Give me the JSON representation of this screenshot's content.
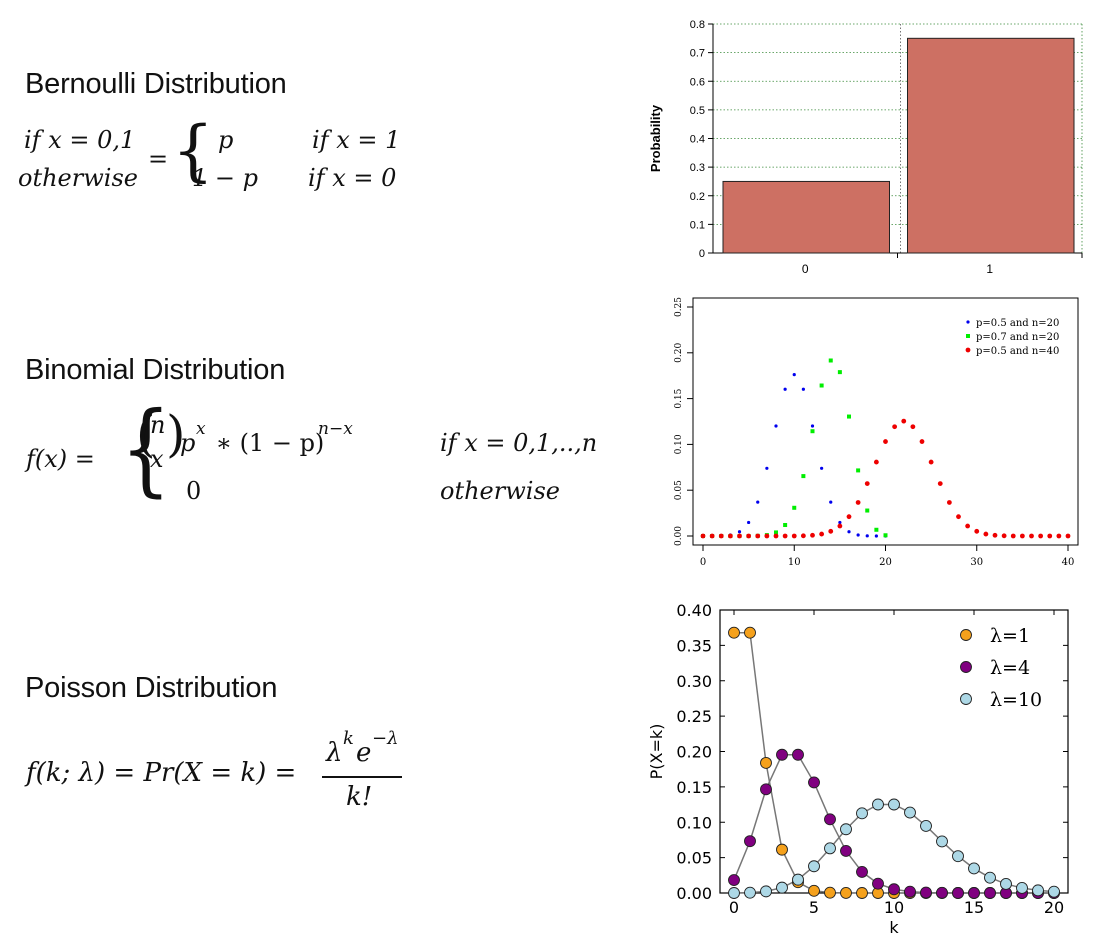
{
  "sections": {
    "bernoulli": {
      "title": "Bernoulli Distribution",
      "lhs_top": "if x = 0,1",
      "lhs_bottom": "otherwise",
      "equals": "=",
      "case1_value": "p",
      "case1_cond": "if x = 1",
      "case2_value": "1 − p",
      "case2_cond": "if x = 0"
    },
    "binomial": {
      "title": "Binomial Distribution",
      "lhs": "f(x) =",
      "binom_n": "n",
      "binom_x": "x",
      "case1_expr": "p",
      "case1_exp1": "x",
      "case1_mid": " ∗ (1 − p)",
      "case1_exp2": "n−x",
      "case1_cond": "if x = 0,1,..,n",
      "case2_value": "0",
      "case2_cond": "otherwise"
    },
    "poisson": {
      "title": "Poisson Distribution",
      "lhs": "f(k; λ) = Pr(X = k) =",
      "numerator_base1": "λ",
      "numerator_exp1": "k",
      "numerator_base2": "e",
      "numerator_exp2": "−λ",
      "denominator": "k!"
    }
  },
  "chart_data": [
    {
      "type": "bar",
      "categories": [
        "0",
        "1"
      ],
      "values": [
        0.25,
        0.75
      ],
      "ylabel": "Probability",
      "xlabel": "",
      "ylim": [
        0,
        0.8
      ],
      "yticks": [
        "0",
        "0.1",
        "0.2",
        "0.3",
        "0.4",
        "0.5",
        "0.6",
        "0.7",
        "0.8"
      ],
      "grid": true,
      "colors": {
        "bar": "#cd7063",
        "grid": "#3a8a3a"
      }
    },
    {
      "type": "scatter",
      "xlim": [
        0,
        40
      ],
      "ylim": [
        0,
        0.25
      ],
      "xticks": [
        "0",
        "10",
        "20",
        "30",
        "40"
      ],
      "yticks": [
        "0.00",
        "0.05",
        "0.10",
        "0.15",
        "0.20",
        "0.25"
      ],
      "legend_position": "top-right",
      "series": [
        {
          "name": "p=0.5 and n=20",
          "color": "#0000ee",
          "x": [
            0,
            1,
            2,
            3,
            4,
            5,
            6,
            7,
            8,
            9,
            10,
            11,
            12,
            13,
            14,
            15,
            16,
            17,
            18,
            19,
            20
          ],
          "y": [
            0,
            0,
            0.0002,
            0.0011,
            0.0046,
            0.0148,
            0.037,
            0.0739,
            0.1201,
            0.1602,
            0.1762,
            0.1602,
            0.1201,
            0.0739,
            0.037,
            0.0148,
            0.0046,
            0.0011,
            0.0002,
            0,
            0
          ]
        },
        {
          "name": "p=0.7 and n=20",
          "color": "#00ee00",
          "x": [
            0,
            1,
            2,
            3,
            4,
            5,
            6,
            7,
            8,
            9,
            10,
            11,
            12,
            13,
            14,
            15,
            16,
            17,
            18,
            19,
            20
          ],
          "y": [
            0,
            0,
            0,
            0,
            0,
            0,
            0.0002,
            0.001,
            0.0039,
            0.012,
            0.0308,
            0.0654,
            0.1144,
            0.1643,
            0.1916,
            0.1789,
            0.1304,
            0.0716,
            0.0278,
            0.0068,
            0.0008
          ]
        },
        {
          "name": "p=0.5 and n=40",
          "color": "#ee0000",
          "x": [
            0,
            1,
            2,
            3,
            4,
            5,
            6,
            7,
            8,
            9,
            10,
            11,
            12,
            13,
            14,
            15,
            16,
            17,
            18,
            19,
            20,
            21,
            22,
            23,
            24,
            25,
            26,
            27,
            28,
            29,
            30,
            31,
            32,
            33,
            34,
            35,
            36,
            37,
            38,
            39,
            40
          ],
          "y": [
            0,
            0,
            0,
            0,
            0,
            0,
            0,
            0,
            0,
            0,
            0,
            0.0002,
            0.0008,
            0.0021,
            0.0051,
            0.0109,
            0.0211,
            0.0366,
            0.0572,
            0.0807,
            0.1031,
            0.1193,
            0.1254,
            0.1193,
            0.1031,
            0.0807,
            0.0572,
            0.0366,
            0.0211,
            0.0109,
            0.0051,
            0.0021,
            0.0008,
            0.0002,
            0,
            0,
            0,
            0,
            0,
            0,
            0
          ]
        }
      ]
    },
    {
      "type": "line",
      "xlabel": "k",
      "ylabel": "P(X=k)",
      "xlim": [
        0,
        20
      ],
      "ylim": [
        0,
        0.4
      ],
      "xticks": [
        "0",
        "5",
        "10",
        "15",
        "20"
      ],
      "yticks": [
        "0.00",
        "0.05",
        "0.10",
        "0.15",
        "0.20",
        "0.25",
        "0.30",
        "0.35",
        "0.40"
      ],
      "legend_position": "top-right",
      "series": [
        {
          "name": "λ=1",
          "color": "#f5a11c",
          "x": [
            0,
            1,
            2,
            3,
            4,
            5,
            6,
            7,
            8,
            9,
            10,
            11,
            12,
            13,
            14,
            15,
            16,
            17,
            18,
            19,
            20
          ],
          "y": [
            0.3679,
            0.3679,
            0.1839,
            0.0613,
            0.0153,
            0.0031,
            0.0005,
            0.0001,
            0,
            0,
            0,
            0,
            0,
            0,
            0,
            0,
            0,
            0,
            0,
            0,
            0
          ]
        },
        {
          "name": "λ=4",
          "color": "#800080",
          "x": [
            0,
            1,
            2,
            3,
            4,
            5,
            6,
            7,
            8,
            9,
            10,
            11,
            12,
            13,
            14,
            15,
            16,
            17,
            18,
            19,
            20
          ],
          "y": [
            0.0183,
            0.0733,
            0.1465,
            0.1954,
            0.1954,
            0.1563,
            0.1042,
            0.0595,
            0.0298,
            0.0132,
            0.0053,
            0.0019,
            0.0006,
            0.0002,
            0,
            0,
            0,
            0,
            0,
            0,
            0
          ]
        },
        {
          "name": "λ=10",
          "color": "#add8e6",
          "x": [
            0,
            1,
            2,
            3,
            4,
            5,
            6,
            7,
            8,
            9,
            10,
            11,
            12,
            13,
            14,
            15,
            16,
            17,
            18,
            19,
            20
          ],
          "y": [
            0,
            0.0005,
            0.0023,
            0.0076,
            0.0189,
            0.0378,
            0.0631,
            0.0901,
            0.1126,
            0.1251,
            0.1251,
            0.1137,
            0.0948,
            0.0729,
            0.0521,
            0.0347,
            0.0217,
            0.0128,
            0.0071,
            0.0037,
            0.0019
          ]
        }
      ]
    }
  ]
}
